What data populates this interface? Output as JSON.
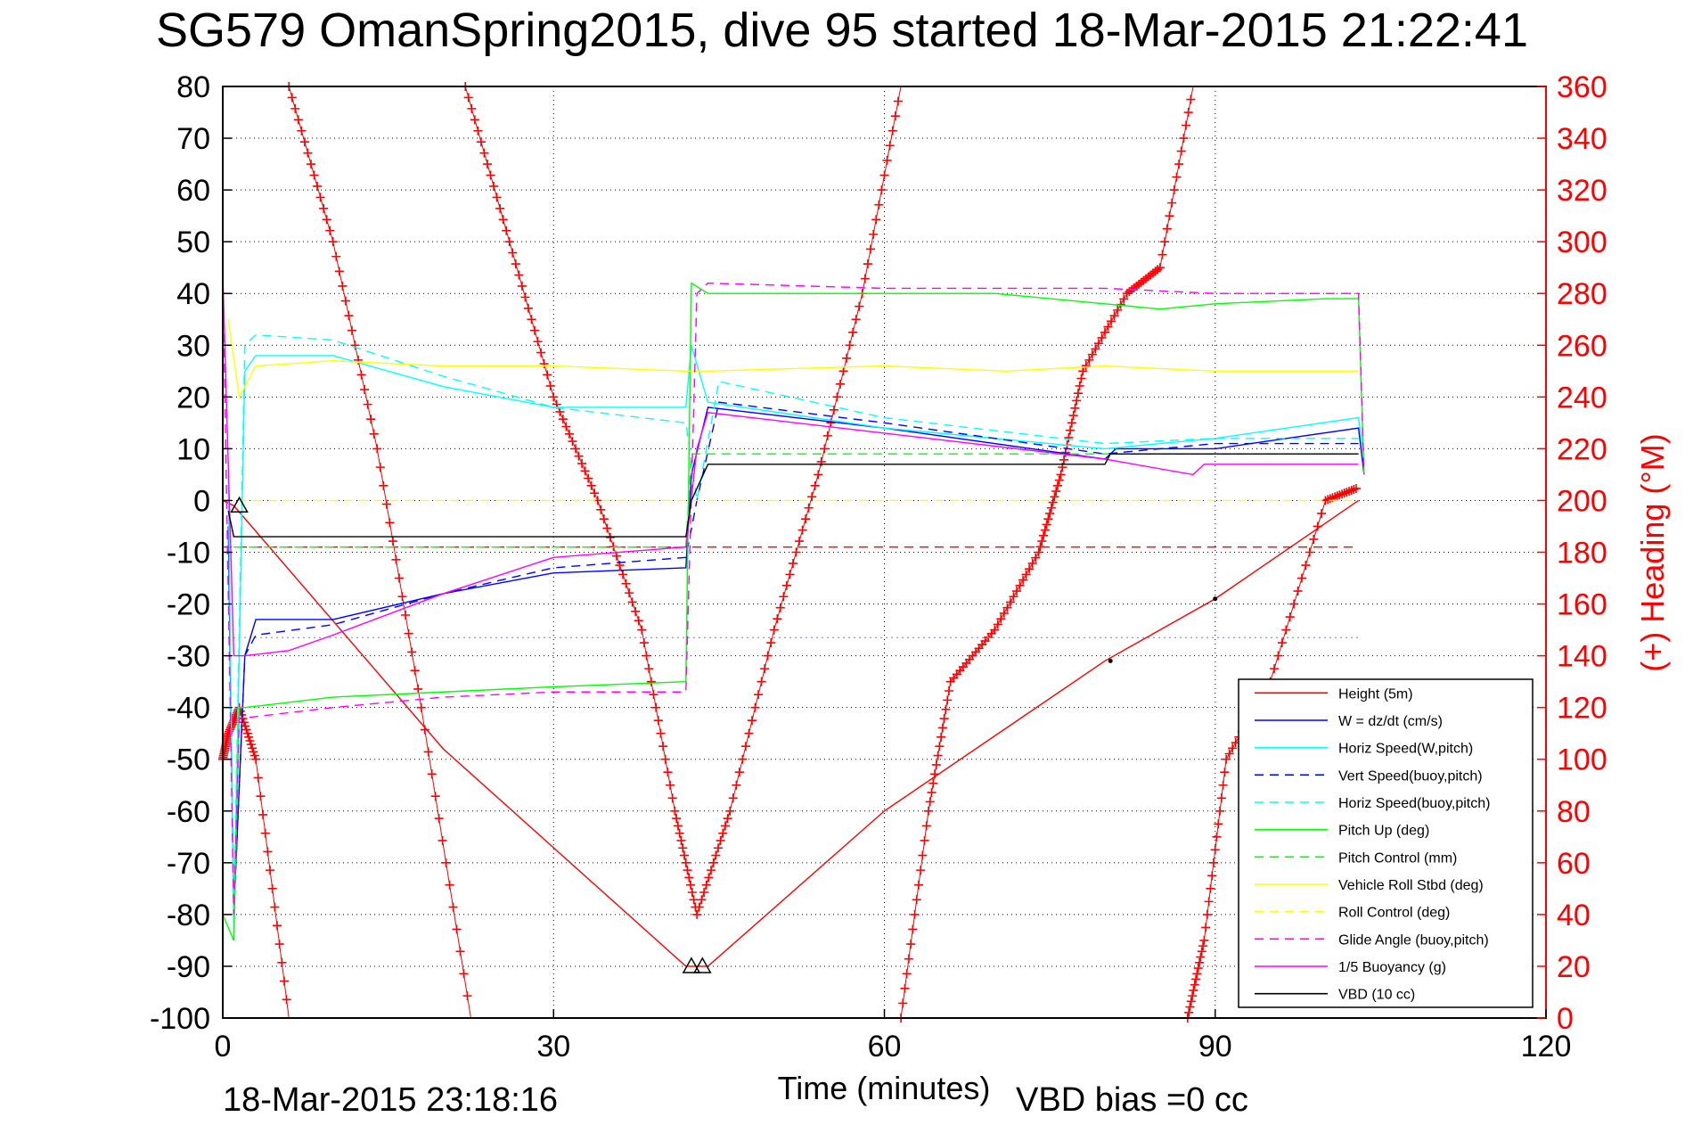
{
  "chart_data": {
    "type": "line",
    "title": "SG579 OmanSpring2015, dive 95 started 18-Mar-2015 21:22:41",
    "xlabel": "Time (minutes)",
    "ylabel": "",
    "ylabel_right": "(+) Heading (°M)",
    "xlim": [
      0,
      120
    ],
    "ylim": [
      -100,
      80
    ],
    "ylim_right": [
      0,
      360
    ],
    "xticks": [
      "0",
      "30",
      "60",
      "90",
      "120"
    ],
    "yticks": [
      "80",
      "70",
      "60",
      "50",
      "40",
      "30",
      "20",
      "10",
      "0",
      "-10",
      "-20",
      "-30",
      "-40",
      "-50",
      "-60",
      "-70",
      "-80",
      "-90",
      "-100"
    ],
    "yticks_right": [
      "360",
      "340",
      "320",
      "300",
      "280",
      "260",
      "240",
      "220",
      "200",
      "180",
      "160",
      "140",
      "120",
      "100",
      "80",
      "60",
      "40",
      "20",
      "0"
    ],
    "grid": true,
    "legend_position": "bottom-right",
    "footer_left": "18-Mar-2015 23:18:16",
    "footer_right": "VBD bias =0 cc",
    "series": [
      {
        "name": "Height (5m)",
        "color": "#ff0000",
        "style": "solid",
        "x": [
          0,
          1,
          20,
          42,
          44,
          60,
          80,
          90,
          103
        ],
        "y": [
          0,
          -1,
          -48,
          -90,
          -90,
          -60,
          -31,
          -19,
          0
        ]
      },
      {
        "name": "W = dz/dt (cm/s)",
        "color": "#0000ff",
        "style": "solid",
        "x": [
          0.5,
          1,
          2,
          3,
          10,
          20,
          30,
          42,
          42.5,
          44,
          60,
          80,
          81,
          90,
          103,
          103.5
        ],
        "y": [
          -5,
          -80,
          -30,
          -23,
          -23,
          -18,
          -14,
          -13,
          5,
          18,
          14,
          8,
          10,
          10,
          14,
          5
        ]
      },
      {
        "name": "Horiz Speed(W,pitch)",
        "color": "#00ffff",
        "style": "solid",
        "x": [
          0.5,
          1,
          2,
          3,
          10,
          20,
          30,
          42,
          42.5,
          44,
          60,
          80,
          90,
          103,
          103.5
        ],
        "y": [
          5,
          -83,
          25,
          28,
          28,
          22,
          18,
          18,
          30,
          19,
          14,
          10,
          12,
          16,
          8
        ]
      },
      {
        "name": "Vert Speed(buoy,pitch)",
        "color": "#0000ff",
        "style": "dashed",
        "x": [
          1,
          2,
          3,
          10,
          20,
          30,
          42,
          43,
          45,
          60,
          80,
          90,
          103
        ],
        "y": [
          -80,
          -30,
          -26,
          -24,
          -18,
          -13,
          -11,
          0,
          19,
          15,
          9,
          11,
          11
        ]
      },
      {
        "name": "Horiz Speed(buoy,pitch)",
        "color": "#00ffff",
        "style": "dashed",
        "x": [
          1,
          2,
          3,
          10,
          20,
          30,
          42,
          43,
          45,
          60,
          80,
          90,
          103
        ],
        "y": [
          -80,
          30,
          32,
          31,
          24,
          18,
          15,
          0,
          23,
          16,
          11,
          12,
          12
        ]
      },
      {
        "name": "Pitch Up (deg)",
        "color": "#00ff00",
        "style": "solid",
        "x": [
          0,
          1,
          1.5,
          2,
          10,
          20,
          30,
          42,
          42.5,
          44,
          60,
          70,
          80,
          85,
          90,
          100,
          103,
          103.5
        ],
        "y": [
          -80,
          -85,
          -40,
          -40,
          -38,
          -37,
          -36,
          -35,
          42,
          40,
          40,
          40,
          38,
          37,
          38,
          39,
          39,
          5
        ]
      },
      {
        "name": "Pitch Control (mm)",
        "color": "#00ff00",
        "style": "dashed",
        "x": [
          1,
          42,
          42.5,
          103
        ],
        "y": [
          -9,
          -9,
          9,
          9
        ]
      },
      {
        "name": "Vehicle Roll Stbd (deg)",
        "color": "#ffff00",
        "style": "solid",
        "x": [
          0.5,
          1.5,
          3,
          10,
          20,
          30,
          42,
          44,
          60,
          71,
          80,
          90,
          103
        ],
        "y": [
          35,
          20,
          26,
          27,
          26,
          26,
          25,
          25,
          26,
          25,
          26,
          25,
          25
        ]
      },
      {
        "name": "Roll Control (deg)",
        "color": "#ffff00",
        "style": "dashed",
        "x": [
          0,
          103
        ],
        "y": [
          0,
          0
        ]
      },
      {
        "name": "Glide Angle (buoy,pitch)",
        "color": "#ff00ff",
        "style": "dashed",
        "x": [
          0,
          1,
          1.5,
          2,
          10,
          20,
          30,
          42,
          43,
          44,
          60,
          80,
          90,
          103,
          103.5
        ],
        "y": [
          44,
          -80,
          -42,
          -42,
          -40,
          -38,
          -37,
          -37,
          40,
          42,
          41,
          41,
          40,
          40,
          5
        ]
      },
      {
        "name": "1/5 Buoyancy (g)",
        "color": "#ff00ff",
        "style": "solid",
        "x": [
          0,
          1,
          2,
          6,
          10,
          20,
          30,
          42,
          43,
          44,
          60,
          80,
          88,
          89,
          103
        ],
        "y": [
          44,
          -30,
          -30,
          -29,
          -26,
          -18,
          -11,
          -9,
          10,
          17,
          13,
          8,
          5,
          7,
          7
        ]
      },
      {
        "name": "VBD (10 cc)",
        "color": "#000000",
        "style": "solid",
        "x": [
          0.5,
          1,
          42,
          42.5,
          44,
          80,
          80.5,
          103
        ],
        "y": [
          -2,
          -7,
          -7,
          0,
          7,
          7,
          9,
          9
        ]
      }
    ],
    "heading_series": {
      "name": "Heading",
      "color": "#ff0000",
      "marker": "+",
      "axis": "right",
      "segments": [
        {
          "x": [
            0,
            0.5,
            1.5,
            3,
            6
          ],
          "y": [
            100,
            110,
            120,
            100,
            0
          ]
        },
        {
          "x": [
            6,
            10,
            14,
            18,
            22.5
          ],
          "y": [
            360,
            300,
            220,
            120,
            0
          ]
        },
        {
          "x": [
            22,
            26,
            30,
            34,
            38,
            41,
            43,
            46,
            50,
            54,
            58,
            61.5
          ],
          "y": [
            360,
            300,
            240,
            200,
            150,
            80,
            40,
            80,
            150,
            210,
            280,
            360
          ]
        },
        {
          "x": [
            61.5,
            64,
            66,
            70,
            74,
            76,
            78,
            82,
            85,
            88
          ],
          "y": [
            0,
            80,
            130,
            150,
            180,
            210,
            250,
            280,
            290,
            360
          ]
        },
        {
          "x": [
            87.5,
            89,
            91,
            95,
            100,
            103
          ],
          "y": [
            0,
            30,
            100,
            130,
            200,
            205
          ]
        }
      ]
    },
    "triangle_markers": {
      "x": [
        1.5,
        42.5,
        43.5
      ],
      "y": [
        -1,
        -90,
        -90
      ]
    },
    "black_points": {
      "x": [
        80.5,
        90
      ],
      "y": [
        -31,
        -19
      ]
    },
    "horizontal_lines": [
      {
        "color": "#ff0000",
        "style": "dashed",
        "y": -9,
        "x": [
          0,
          103
        ]
      },
      {
        "color": "#9999ff",
        "style": "dotted",
        "y": -26.5,
        "x": [
          0,
          103
        ]
      }
    ]
  }
}
